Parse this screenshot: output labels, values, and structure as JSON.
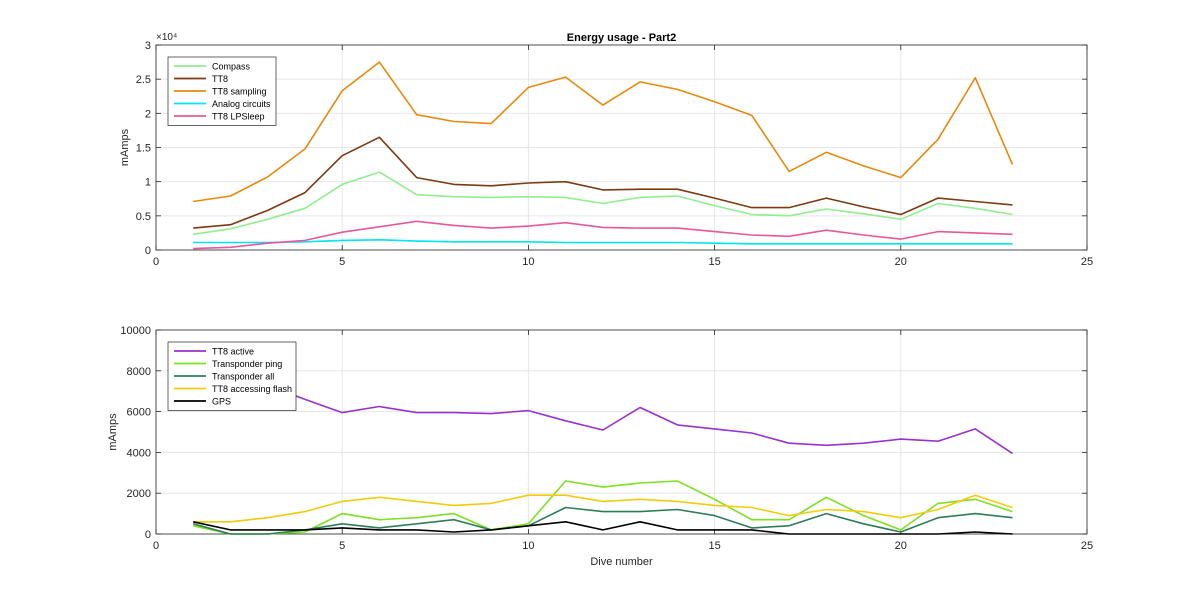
{
  "chart_data": [
    {
      "type": "line",
      "title": "Energy usage - Part2",
      "xlabel": "",
      "ylabel": "mAmps",
      "xlim": [
        0,
        25
      ],
      "ylim": [
        0,
        30000
      ],
      "x_ticks": [
        "0",
        "5",
        "10",
        "15",
        "20",
        "25"
      ],
      "y_ticks": [
        "0",
        "0.5",
        "1",
        "1.5",
        "2",
        "2.5",
        "3"
      ],
      "y_ticks_values": [
        0,
        5000,
        10000,
        15000,
        20000,
        25000,
        30000
      ],
      "y_exponent_label": "×10⁴",
      "grid": true,
      "legend_position": "top-left",
      "x": [
        1,
        2,
        3,
        4,
        5,
        6,
        7,
        8,
        9,
        10,
        11,
        12,
        13,
        14,
        15,
        16,
        17,
        18,
        19,
        20,
        21,
        22,
        23
      ],
      "series": [
        {
          "name": "Compass",
          "color": "#90EE90",
          "values": [
            2300,
            3100,
            4500,
            6100,
            9600,
            11400,
            8100,
            7800,
            7700,
            7800,
            7700,
            6800,
            7700,
            7900,
            6500,
            5200,
            5000,
            6000,
            5300,
            4500,
            6800,
            6100,
            5200
          ]
        },
        {
          "name": "TT8",
          "color": "#7B3A10",
          "values": [
            3200,
            3700,
            5800,
            8400,
            13800,
            16500,
            10600,
            9600,
            9400,
            9800,
            10000,
            8800,
            8900,
            8900,
            7600,
            6200,
            6200,
            7600,
            6300,
            5200,
            7600,
            7100,
            6600
          ]
        },
        {
          "name": "TT8 sampling",
          "color": "#E8890C",
          "values": [
            7100,
            7900,
            10700,
            14800,
            23300,
            27500,
            19800,
            18800,
            18500,
            23800,
            25300,
            21200,
            24600,
            23500,
            21700,
            19700,
            11500,
            14300,
            12300,
            10600,
            16200,
            25200,
            12500
          ]
        },
        {
          "name": "Analog circuits",
          "color": "#00E5EE",
          "values": [
            1100,
            1100,
            1100,
            1200,
            1400,
            1500,
            1300,
            1200,
            1200,
            1200,
            1100,
            1100,
            1100,
            1100,
            1000,
            900,
            900,
            900,
            900,
            900,
            900,
            900,
            900
          ]
        },
        {
          "name": "TT8 LPSleep",
          "color": "#E8579B",
          "values": [
            200,
            400,
            1000,
            1400,
            2600,
            3400,
            4200,
            3600,
            3200,
            3500,
            4000,
            3300,
            3200,
            3200,
            2700,
            2200,
            2000,
            2900,
            2200,
            1600,
            2700,
            2500,
            2300
          ]
        }
      ]
    },
    {
      "type": "line",
      "title": "",
      "xlabel": "Dive number",
      "ylabel": "mAmps",
      "xlim": [
        0,
        25
      ],
      "ylim": [
        0,
        10000
      ],
      "x_ticks": [
        "0",
        "5",
        "10",
        "15",
        "20",
        "25"
      ],
      "y_ticks": [
        "0",
        "2000",
        "4000",
        "6000",
        "8000",
        "10000"
      ],
      "y_ticks_values": [
        0,
        2000,
        4000,
        6000,
        8000,
        10000
      ],
      "grid": true,
      "legend_position": "top-left",
      "x": [
        1,
        2,
        3,
        4,
        5,
        6,
        7,
        8,
        9,
        10,
        11,
        12,
        13,
        14,
        15,
        16,
        17,
        18,
        19,
        20,
        21,
        22,
        23
      ],
      "series": [
        {
          "name": "TT8 active",
          "color": "#9932CC",
          "values": [
            8200,
            7600,
            7300,
            6600,
            5950,
            6250,
            5950,
            5950,
            5900,
            6050,
            5550,
            5100,
            6200,
            5350,
            5150,
            4950,
            4450,
            4350,
            4450,
            4650,
            4550,
            5150,
            3950
          ]
        },
        {
          "name": "Transponder ping",
          "color": "#7FE022",
          "values": [
            400,
            0,
            0,
            100,
            1000,
            700,
            800,
            1000,
            200,
            500,
            2600,
            2300,
            2500,
            2600,
            1700,
            700,
            700,
            1800,
            900,
            200,
            1500,
            1700,
            1100
          ]
        },
        {
          "name": "Transponder all",
          "color": "#2E7D5A",
          "values": [
            500,
            0,
            0,
            200,
            500,
            300,
            500,
            700,
            200,
            400,
            1300,
            1100,
            1100,
            1200,
            900,
            300,
            400,
            1000,
            500,
            100,
            800,
            1000,
            800
          ]
        },
        {
          "name": "TT8 accessing flash",
          "color": "#F2CC0C",
          "values": [
            600,
            600,
            800,
            1100,
            1600,
            1800,
            1600,
            1400,
            1500,
            1900,
            1900,
            1600,
            1700,
            1600,
            1400,
            1300,
            900,
            1200,
            1100,
            800,
            1200,
            1900,
            1300
          ]
        },
        {
          "name": "GPS",
          "color": "#000000",
          "values": [
            600,
            200,
            200,
            200,
            300,
            200,
            200,
            100,
            200,
            400,
            600,
            200,
            600,
            200,
            200,
            200,
            0,
            0,
            0,
            0,
            0,
            100,
            0
          ]
        }
      ]
    }
  ]
}
